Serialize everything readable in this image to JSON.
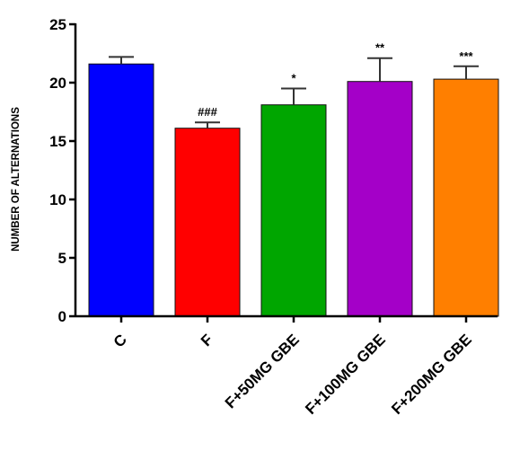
{
  "chart_data": {
    "type": "bar",
    "title": "",
    "xlabel": "",
    "ylabel": "NUMBER OF ALTERNATIONS",
    "ylim": [
      0,
      25
    ],
    "yticks": [
      0,
      5,
      10,
      15,
      20,
      25
    ],
    "grid": false,
    "categories": [
      "C",
      "F",
      "F+50MG GBE",
      "F+100MG GBE",
      "F+200MG GBE"
    ],
    "values": [
      21.6,
      16.1,
      18.1,
      20.1,
      20.3
    ],
    "errors": [
      0.6,
      0.5,
      1.4,
      2.0,
      1.1
    ],
    "annotations": [
      "",
      "###",
      "*",
      "**",
      "***"
    ],
    "colors": [
      "#0000ff",
      "#ff0000",
      "#00a600",
      "#a400c8",
      "#ff7f00"
    ]
  }
}
